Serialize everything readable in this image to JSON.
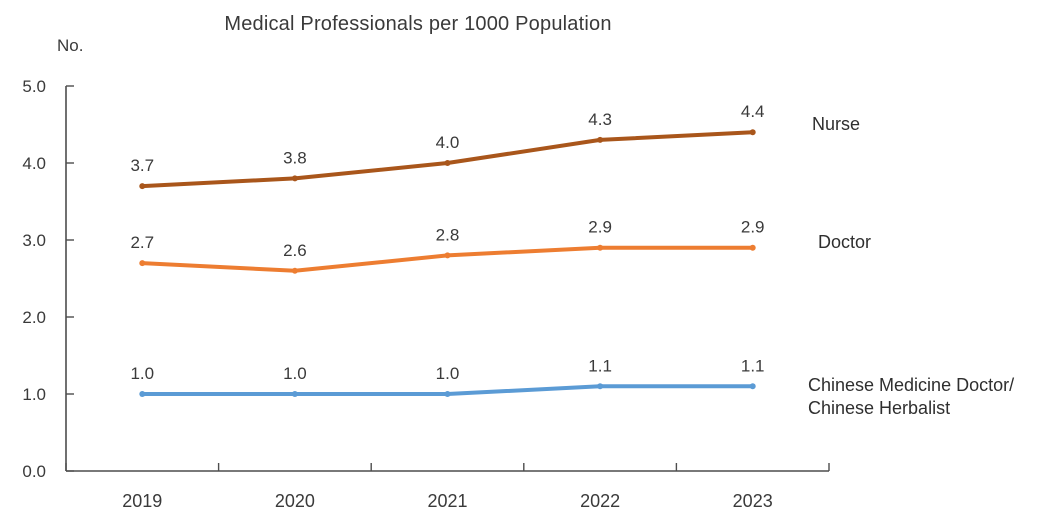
{
  "chart_data": {
    "type": "line",
    "title": "Medical Professionals per 1000 Population",
    "ylabel": "No.",
    "xlabel": "",
    "categories": [
      "2019",
      "2020",
      "2021",
      "2022",
      "2023"
    ],
    "ylim": [
      0.0,
      5.0
    ],
    "ytick_step": 1.0,
    "ytick_labels": [
      "0.0",
      "1.0",
      "2.0",
      "3.0",
      "4.0",
      "5.0"
    ],
    "grid": false,
    "markers": true,
    "data_labels_position": "above",
    "legend_position": "right-of-line-ends",
    "axis_color": "#4d4d4d",
    "text_color": "#3a3a3a",
    "series": [
      {
        "name": "Nurse",
        "slug": "nurse",
        "label_lines": [
          "Nurse"
        ],
        "values": [
          3.7,
          3.8,
          4.0,
          4.3,
          4.4
        ],
        "labels": [
          "3.7",
          "3.8",
          "4.0",
          "4.3",
          "4.4"
        ],
        "color": "#A9561B"
      },
      {
        "name": "Doctor",
        "slug": "doctor",
        "label_lines": [
          "Doctor"
        ],
        "values": [
          2.7,
          2.6,
          2.8,
          2.9,
          2.9
        ],
        "labels": [
          "2.7",
          "2.6",
          "2.8",
          "2.9",
          "2.9"
        ],
        "color": "#ED7D31"
      },
      {
        "name": "Chinese Medicine Doctor/ Chinese Herbalist",
        "slug": "chinese-medicine-doctor-chinese-herbalist",
        "label_lines": [
          "Chinese Medicine Doctor/",
          "Chinese Herbalist"
        ],
        "values": [
          1.0,
          1.0,
          1.0,
          1.1,
          1.1
        ],
        "labels": [
          "1.0",
          "1.0",
          "1.0",
          "1.1",
          "1.1"
        ],
        "color": "#5B9BD5"
      }
    ]
  }
}
